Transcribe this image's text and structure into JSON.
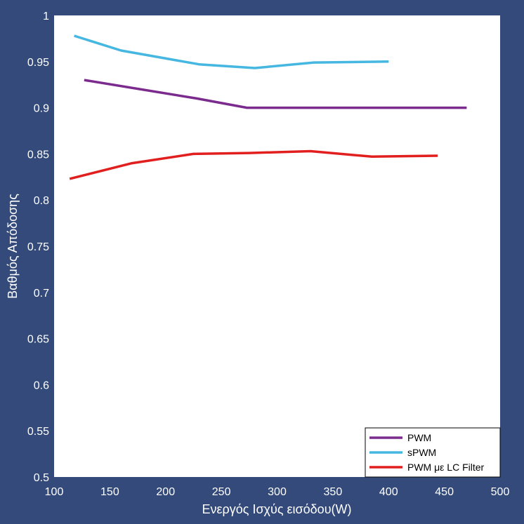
{
  "chart_data": {
    "type": "line",
    "title": "",
    "xlabel": "Ενεργός Ισχύς εισόδου(W)",
    "ylabel": "Βαθμός Απόδοσης",
    "xlim": [
      100,
      500
    ],
    "ylim": [
      0.5,
      1
    ],
    "xticks": [
      "100",
      "150",
      "200",
      "250",
      "300",
      "350",
      "400",
      "450",
      "500"
    ],
    "yticks": [
      "0.5",
      "0.55",
      "0.6",
      "0.65",
      "0.7",
      "0.75",
      "0.8",
      "0.85",
      "0.9",
      "0.95",
      "1"
    ],
    "grid": false,
    "legend_position": "bottom-right",
    "series": [
      {
        "name": "PWM",
        "color": "#7b2a8e",
        "x": [
          127,
          228,
          273,
          470
        ],
        "y": [
          0.93,
          0.91,
          0.9,
          0.9
        ]
      },
      {
        "name": "sPWM",
        "color": "#45b7e0",
        "x": [
          118,
          160,
          230,
          280,
          333,
          400
        ],
        "y": [
          0.978,
          0.962,
          0.947,
          0.943,
          0.949,
          0.95
        ]
      },
      {
        "name": "PWM με LC Filter",
        "color": "#e21f1f",
        "x": [
          114,
          170,
          225,
          275,
          330,
          385,
          444
        ],
        "y": [
          0.823,
          0.84,
          0.85,
          0.851,
          0.853,
          0.847,
          0.848
        ]
      }
    ]
  }
}
